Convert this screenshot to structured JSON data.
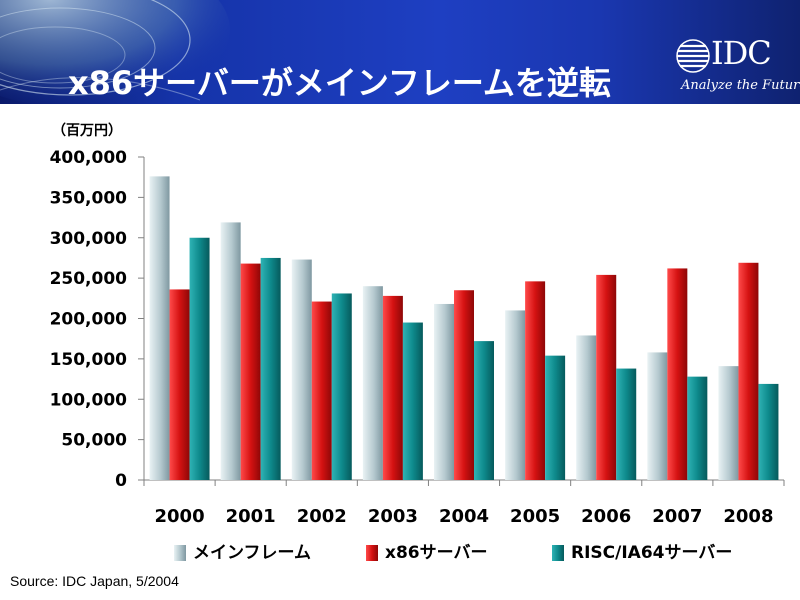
{
  "header": {
    "title": "x86サーバーがメインフレームを逆転",
    "logo_text": "IDC",
    "logo_tagline": "Analyze the Future"
  },
  "chart_data": {
    "type": "bar",
    "unit_label": "（百万円）",
    "categories": [
      "2000",
      "2001",
      "2002",
      "2003",
      "2004",
      "2005",
      "2006",
      "2007",
      "2008"
    ],
    "series": [
      {
        "name": "メインフレーム",
        "color": "#a9bfc6",
        "values": [
          376000,
          319000,
          273000,
          240000,
          218000,
          210000,
          179000,
          158000,
          141000
        ]
      },
      {
        "name": "x86サーバー",
        "color": "#d01010",
        "values": [
          236000,
          268000,
          221000,
          228000,
          235000,
          246000,
          254000,
          262000,
          269000
        ]
      },
      {
        "name": "RISC/IA64サーバー",
        "color": "#0e8a8c",
        "values": [
          300000,
          275000,
          231000,
          195000,
          172000,
          154000,
          138000,
          128000,
          119000
        ]
      }
    ],
    "ylim": [
      0,
      400000
    ],
    "yticks": [
      0,
      50000,
      100000,
      150000,
      200000,
      250000,
      300000,
      350000,
      400000
    ],
    "ytick_labels": [
      "0",
      "50,000",
      "100,000",
      "150,000",
      "200,000",
      "250,000",
      "300,000",
      "350,000",
      "400,000"
    ],
    "legend_position": "bottom",
    "grid": false
  },
  "source": "Source: IDC Japan, 5/2004"
}
